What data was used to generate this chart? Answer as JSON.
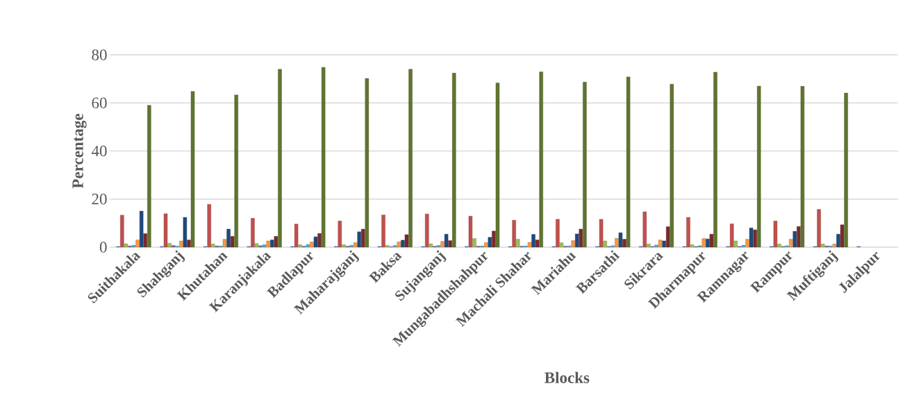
{
  "chart_data": {
    "type": "bar",
    "xlabel": "Blocks",
    "ylabel": "Percentage",
    "categories": [
      "Suithakala",
      "Shahganj",
      "Khutahan",
      "Karanjakala",
      "Badlapur",
      "Maharajganj",
      "Baksa",
      "Sujanganj",
      "Mungabadhshahpur",
      "Machali Shahar",
      "Mariahu",
      "Barsathi",
      "Sikrara",
      "Dharmapur",
      "Ramnagar",
      "Rampur",
      "Muftiganj",
      "Jalalpur"
    ],
    "series": [
      {
        "color": "#4f81bd",
        "values": [
          0.3,
          0.3,
          0.3,
          0.3,
          0.3,
          0.3,
          0.3,
          0.3,
          0.3,
          0.3,
          0.3,
          0.3,
          0.3,
          0.3,
          0.3,
          0.3,
          0.3,
          0.3
        ]
      },
      {
        "color": "#c0504d",
        "values": [
          13.3,
          13.9,
          17.8,
          12.0,
          9.6,
          10.9,
          13.4,
          13.8,
          12.9,
          11.2,
          11.6,
          11.6,
          14.7,
          12.4,
          9.7,
          10.9,
          15.7,
          null
        ]
      },
      {
        "color": "#9bbb59",
        "values": [
          1.4,
          1.6,
          1.3,
          1.5,
          1.0,
          1.0,
          0.7,
          1.4,
          3.6,
          3.3,
          1.8,
          2.6,
          1.3,
          1.0,
          2.6,
          1.3,
          1.3,
          null
        ]
      },
      {
        "color": "#8064a2",
        "values": [
          0.5,
          0.7,
          0.5,
          0.6,
          0.4,
          0.4,
          0.2,
          0.4,
          0.4,
          0.4,
          0.4,
          0.3,
          0.3,
          0.3,
          0.3,
          0.3,
          0.5,
          null
        ]
      },
      {
        "color": "#4bacc6",
        "values": [
          0.8,
          0.4,
          0.5,
          1.0,
          1.1,
          0.8,
          0.7,
          0.7,
          0.5,
          0.5,
          0.5,
          0.6,
          0.9,
          0.6,
          0.8,
          0.6,
          0.5,
          null
        ]
      },
      {
        "color": "#f79646",
        "values": [
          3.0,
          2.6,
          3.3,
          2.6,
          2.2,
          1.9,
          2.2,
          2.4,
          1.9,
          2.0,
          2.7,
          3.7,
          3.0,
          3.6,
          3.3,
          3.3,
          1.3,
          null
        ]
      },
      {
        "color": "#1f497d",
        "values": [
          15.0,
          12.4,
          7.5,
          3.0,
          4.3,
          6.4,
          2.9,
          5.4,
          4.1,
          5.3,
          5.5,
          6.0,
          2.6,
          3.4,
          8.0,
          6.6,
          5.4,
          null
        ]
      },
      {
        "color": "#772c2a",
        "values": [
          5.6,
          3.0,
          4.5,
          4.5,
          5.7,
          7.5,
          5.2,
          2.7,
          6.7,
          3.0,
          7.5,
          3.3,
          8.5,
          5.4,
          7.2,
          8.6,
          9.3,
          null
        ]
      },
      {
        "color": "#5f7530",
        "values": [
          59.0,
          64.8,
          63.3,
          74.0,
          74.8,
          70.2,
          74.0,
          72.4,
          68.3,
          72.9,
          68.7,
          70.8,
          67.8,
          72.8,
          67.0,
          66.9,
          64.1,
          null
        ]
      }
    ],
    "ylim": [
      0,
      80
    ],
    "yticks": [
      0,
      20,
      40,
      60,
      80
    ],
    "grid": "y"
  }
}
